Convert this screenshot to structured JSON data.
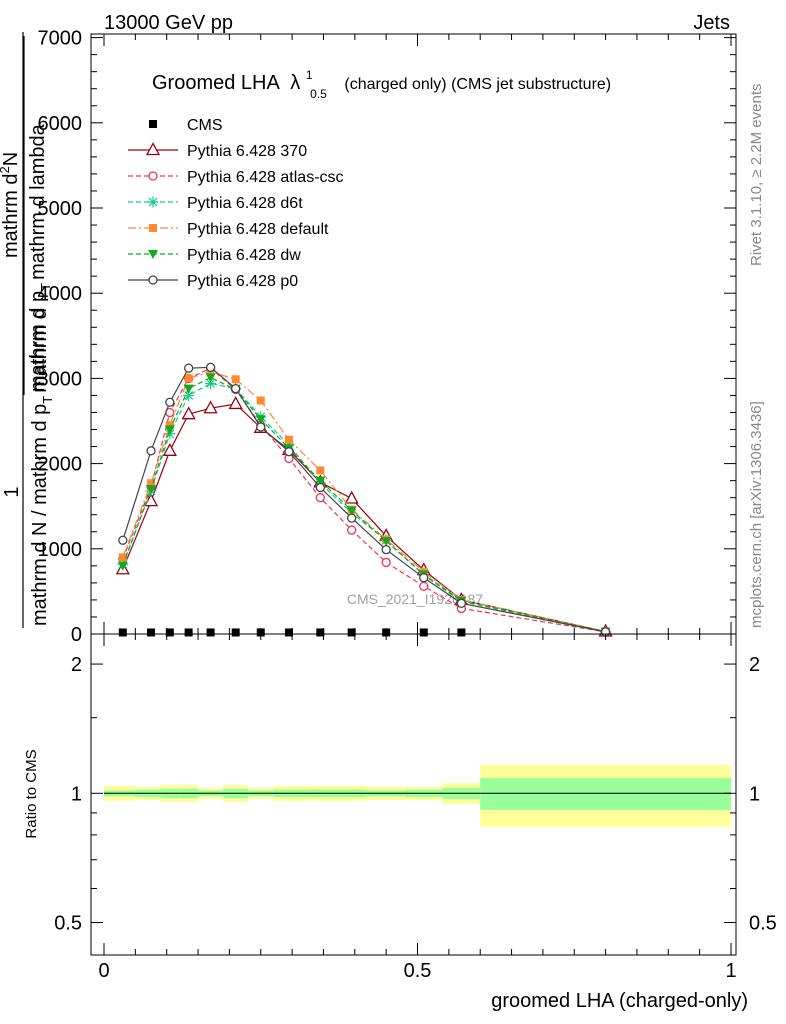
{
  "header": {
    "left": "13000 GeV pp",
    "right": "Jets"
  },
  "side_labels": {
    "rivet": "Rivet 3.1.10, ≥ 2.2M events",
    "mcplots": "mcplots.cern.ch [arXiv:1306.3436]"
  },
  "watermark": "CMS_2021_I1920187",
  "colors": {
    "cms": "#000000",
    "p370": "#990011",
    "atlas": "#ee3355",
    "d6t": "#11cc88",
    "default": "#ff8833",
    "dw": "#11aa22",
    "p0": "#444444",
    "band_inner": "#99ff99",
    "band_outer": "#ffff99"
  },
  "chart_data": [
    {
      "type": "line",
      "title": "Groomed LHA",
      "title_symbol": "λ",
      "title_sup": "1",
      "title_sub": "0.5",
      "title_suffix": "(charged only) (CMS jet substructure)",
      "ylabel": "1 / mathrm d N / mathrm d p_T mathrm d^2N / mathrm d p_T mathrm d lambda",
      "ylabel_parts": {
        "frac_top": "1",
        "frac_bottom": "mathrm d N / mathrm d p",
        "frac_bottom_sub": "T",
        "frac_bottom_tail": "mathrm d",
        "num": "mathrm d",
        "num_sup": "2",
        "num_tail": "N",
        "den": "mathrm d p",
        "den_sub": "T",
        "den_tail": "mathrm d lambda"
      },
      "xlim": [
        0,
        1
      ],
      "ylim": [
        0,
        7000
      ],
      "yticks": [
        {
          "value": 0,
          "label": "0"
        },
        {
          "value": 1000,
          "label": "1000"
        },
        {
          "value": 2000,
          "label": "2000"
        },
        {
          "value": 3000,
          "label": "3000"
        },
        {
          "value": 4000,
          "label": "4000"
        },
        {
          "value": 5000,
          "label": "5000"
        },
        {
          "value": 6000,
          "label": "6000"
        },
        {
          "value": 7000,
          "label": "7000"
        }
      ],
      "legend_position": "top-left",
      "x": [
        0.03,
        0.075,
        0.105,
        0.135,
        0.17,
        0.21,
        0.25,
        0.295,
        0.345,
        0.395,
        0.45,
        0.51,
        0.57,
        0.8
      ],
      "series": [
        {
          "name": "CMS",
          "key": "cms",
          "marker": "square-filled",
          "line": "none",
          "values": [
            18,
            18,
            18,
            18,
            18,
            18,
            18,
            18,
            18,
            18,
            18,
            18,
            18,
            null
          ]
        },
        {
          "name": "Pythia 6.428 370",
          "key": "p370",
          "marker": "triangle-open",
          "line": "solid",
          "values": [
            760,
            1560,
            2150,
            2580,
            2650,
            2700,
            2420,
            2160,
            1780,
            1590,
            1150,
            750,
            400,
            30
          ]
        },
        {
          "name": "Pythia 6.428 atlas-csc",
          "key": "atlas",
          "marker": "circle-open",
          "line": "dashed",
          "values": [
            880,
            1730,
            2600,
            3000,
            3120,
            2870,
            2450,
            2060,
            1600,
            1220,
            840,
            560,
            300,
            25
          ]
        },
        {
          "name": "Pythia 6.428 d6t",
          "key": "d6t",
          "marker": "star",
          "line": "dashed",
          "values": [
            820,
            1680,
            2350,
            2800,
            2940,
            2880,
            2550,
            2220,
            1770,
            1420,
            1100,
            690,
            380,
            28
          ]
        },
        {
          "name": "Pythia 6.428 default",
          "key": "default",
          "marker": "square-filled",
          "line": "dashdot",
          "values": [
            900,
            1770,
            2450,
            3000,
            3080,
            2990,
            2740,
            2280,
            1920,
            1460,
            1110,
            730,
            400,
            30
          ]
        },
        {
          "name": "Pythia 6.428 dw",
          "key": "dw",
          "marker": "triangle-down-filled",
          "line": "dashed",
          "values": [
            800,
            1700,
            2400,
            2880,
            3010,
            2870,
            2520,
            2180,
            1800,
            1450,
            1090,
            700,
            390,
            28
          ]
        },
        {
          "name": "Pythia 6.428 p0",
          "key": "p0",
          "marker": "circle-open",
          "line": "solid",
          "values": [
            1100,
            2150,
            2720,
            3120,
            3130,
            2880,
            2430,
            2140,
            1720,
            1360,
            990,
            660,
            360,
            25
          ]
        }
      ]
    },
    {
      "type": "area",
      "ylabel": "Ratio to CMS",
      "xlabel": "groomed LHA (charged-only)",
      "xlim": [
        0,
        1
      ],
      "ylim": [
        0.42,
        2.35
      ],
      "log_y": true,
      "yticks": [
        {
          "value": 0.5,
          "label": "0.5"
        },
        {
          "value": 1,
          "label": "1"
        },
        {
          "value": 2,
          "label": "2"
        }
      ],
      "xticks": [
        {
          "value": 0,
          "label": "0"
        },
        {
          "value": 0.5,
          "label": "0.5"
        },
        {
          "value": 1,
          "label": "1"
        }
      ],
      "bins": [
        {
          "lo": 0.0,
          "hi": 0.05,
          "inner": [
            0.985,
            1.015
          ],
          "outer": [
            0.96,
            1.04
          ]
        },
        {
          "lo": 0.05,
          "hi": 0.09,
          "inner": [
            0.98,
            1.02
          ],
          "outer": [
            0.965,
            1.035
          ]
        },
        {
          "lo": 0.09,
          "hi": 0.12,
          "inner": [
            0.975,
            1.025
          ],
          "outer": [
            0.955,
            1.045
          ]
        },
        {
          "lo": 0.12,
          "hi": 0.15,
          "inner": [
            0.975,
            1.025
          ],
          "outer": [
            0.955,
            1.045
          ]
        },
        {
          "lo": 0.15,
          "hi": 0.19,
          "inner": [
            0.985,
            1.015
          ],
          "outer": [
            0.97,
            1.03
          ]
        },
        {
          "lo": 0.19,
          "hi": 0.23,
          "inner": [
            0.975,
            1.025
          ],
          "outer": [
            0.955,
            1.045
          ]
        },
        {
          "lo": 0.23,
          "hi": 0.27,
          "inner": [
            0.985,
            1.015
          ],
          "outer": [
            0.97,
            1.03
          ]
        },
        {
          "lo": 0.27,
          "hi": 0.32,
          "inner": [
            0.98,
            1.02
          ],
          "outer": [
            0.96,
            1.04
          ]
        },
        {
          "lo": 0.32,
          "hi": 0.37,
          "inner": [
            0.98,
            1.02
          ],
          "outer": [
            0.96,
            1.04
          ]
        },
        {
          "lo": 0.37,
          "hi": 0.42,
          "inner": [
            0.98,
            1.02
          ],
          "outer": [
            0.96,
            1.04
          ]
        },
        {
          "lo": 0.42,
          "hi": 0.48,
          "inner": [
            0.985,
            1.015
          ],
          "outer": [
            0.965,
            1.035
          ]
        },
        {
          "lo": 0.48,
          "hi": 0.54,
          "inner": [
            0.98,
            1.02
          ],
          "outer": [
            0.965,
            1.035
          ]
        },
        {
          "lo": 0.54,
          "hi": 0.6,
          "inner": [
            0.97,
            1.03
          ],
          "outer": [
            0.945,
            1.055
          ]
        },
        {
          "lo": 0.6,
          "hi": 1.0,
          "inner": [
            0.915,
            1.085
          ],
          "outer": [
            0.835,
            1.165
          ]
        }
      ]
    }
  ]
}
